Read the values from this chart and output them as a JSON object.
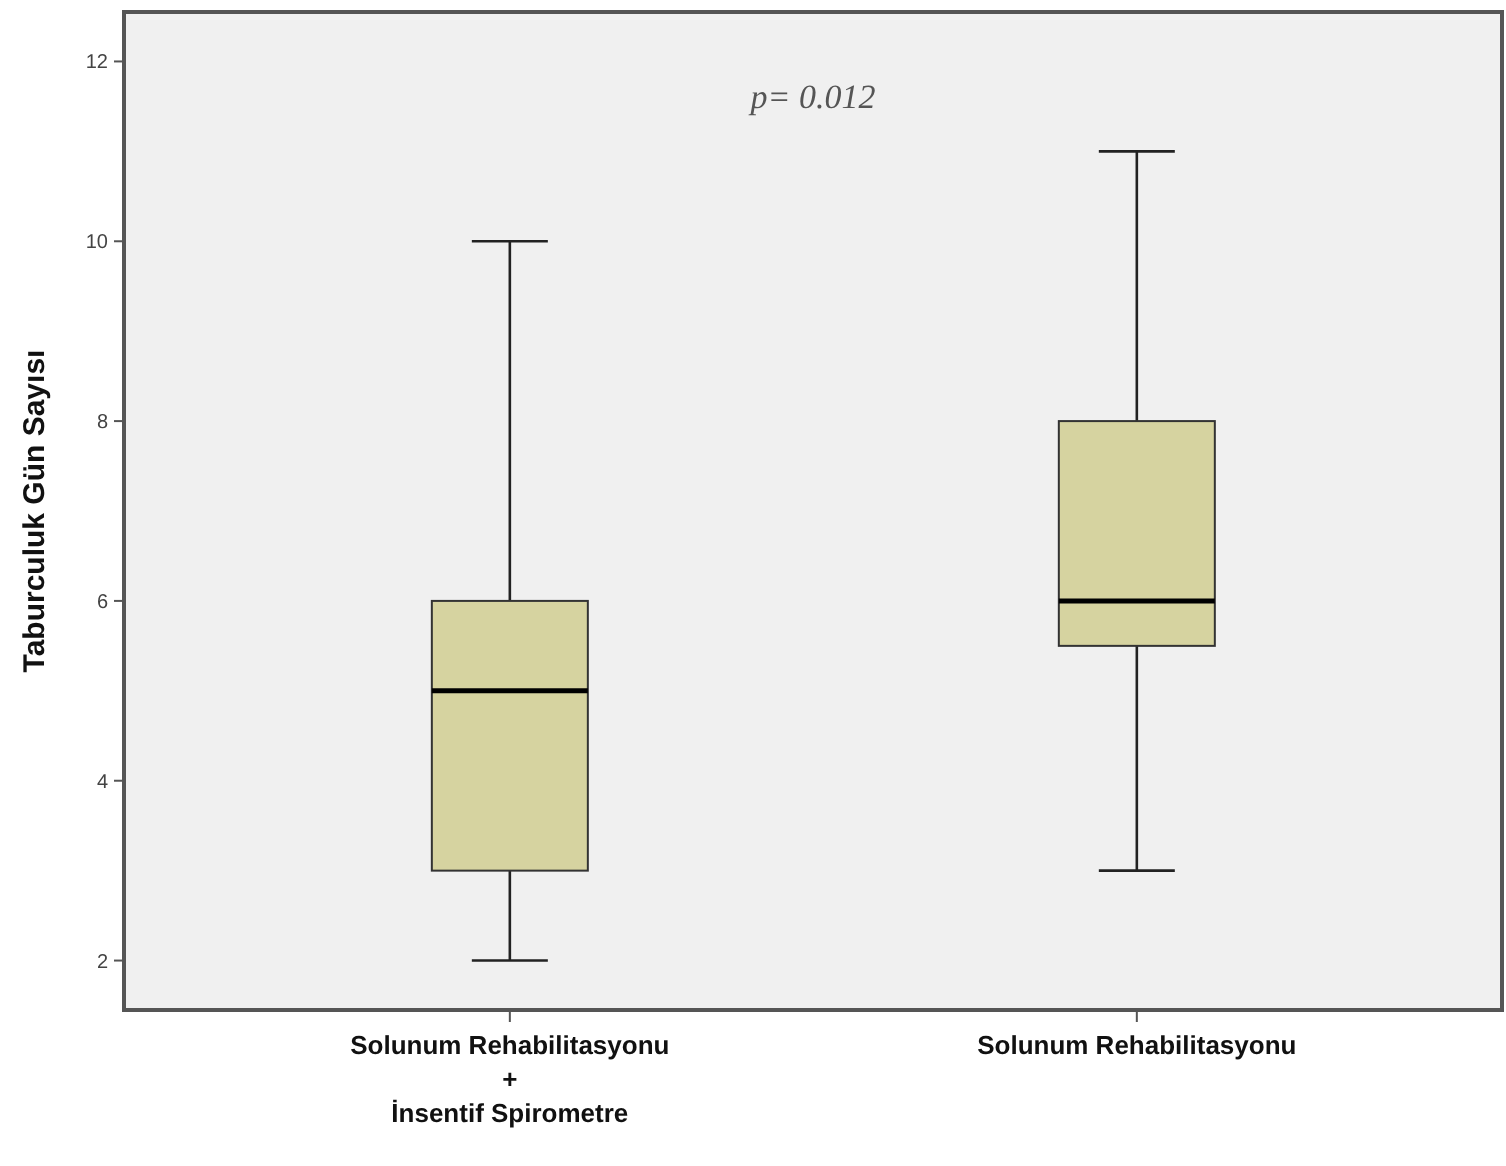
{
  "chart_data": {
    "type": "box",
    "ylabel": "Taburculuk Gün Sayısı",
    "categories": [
      "Solunum Rehabilitasyonu\n+\nİnsentif Spirometre",
      "Solunum Rehabilitasyonu"
    ],
    "boxes": [
      {
        "low": 2,
        "q1": 3,
        "median": 5,
        "q3": 6,
        "high": 10
      },
      {
        "low": 3,
        "q1": 5.5,
        "median": 6,
        "q3": 8,
        "high": 11
      }
    ],
    "color": "#d6d3a0",
    "ylim": [
      1.45,
      12.55
    ],
    "yticks": [
      2,
      4,
      6,
      8,
      10,
      12
    ],
    "grid": false,
    "annotations": [
      {
        "text": "p= 0.012"
      }
    ]
  }
}
